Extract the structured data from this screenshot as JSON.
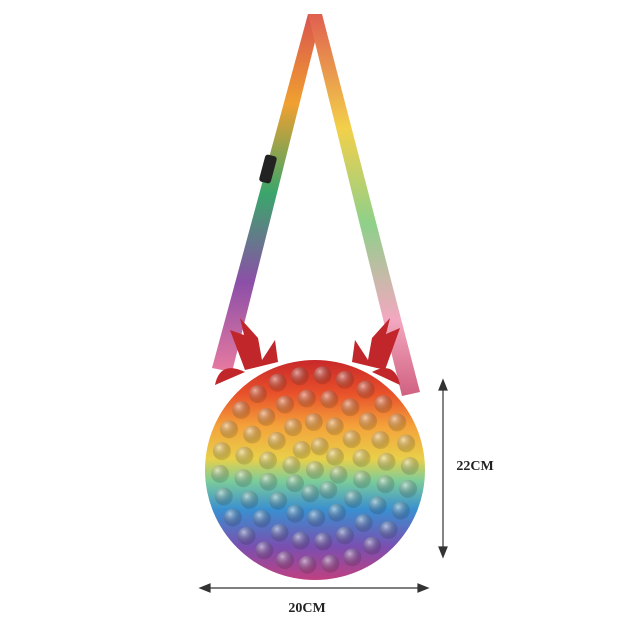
{
  "dimensions": {
    "height": "22CM",
    "width": "20CM"
  }
}
